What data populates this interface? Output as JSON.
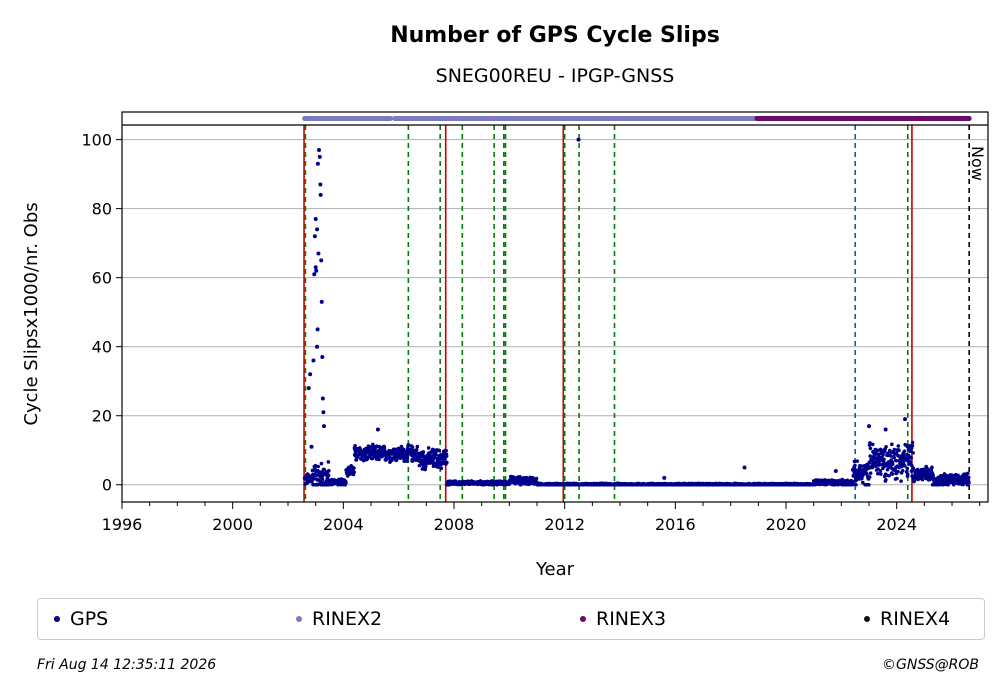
{
  "chart_data": {
    "type": "scatter",
    "title": "Number of GPS Cycle Slips",
    "subtitle": "SNEG00REU - IPGP-GNSS",
    "xlabel": "Year",
    "ylabel": "Cycle Slipsx1000/nr. Obs",
    "xlim": [
      1996,
      2027.3
    ],
    "ylim": [
      -5,
      108
    ],
    "xticks": [
      "1996",
      "2000",
      "2004",
      "2008",
      "2012",
      "2016",
      "2020",
      "2024"
    ],
    "yticks": [
      "0",
      "20",
      "40",
      "60",
      "80",
      "100"
    ],
    "grid": "horizontal",
    "now_label": "Now",
    "now_x": 2026.62,
    "series": [
      {
        "name": "GPS",
        "color": "#00008b",
        "segments": [
          {
            "from": 2002.6,
            "to": 2002.85,
            "base": 1.5,
            "spread": 3
          },
          {
            "from": 2002.85,
            "to": 2003.5,
            "base": 2,
            "spread": 8
          },
          {
            "from": 2003.5,
            "to": 2004.1,
            "base": 0.8,
            "spread": 1.5
          },
          {
            "from": 2004.1,
            "to": 2004.4,
            "base": 4,
            "spread": 3
          },
          {
            "from": 2004.4,
            "to": 2006.7,
            "base": 9,
            "spread": 4
          },
          {
            "from": 2006.7,
            "to": 2007.75,
            "base": 7.5,
            "spread": 5
          },
          {
            "from": 2007.75,
            "to": 2010.0,
            "base": 0.5,
            "spread": 1
          },
          {
            "from": 2010.0,
            "to": 2011.0,
            "base": 1.2,
            "spread": 2
          },
          {
            "from": 2011.0,
            "to": 2021.0,
            "base": 0.1,
            "spread": 0.5
          },
          {
            "from": 2021.0,
            "to": 2022.4,
            "base": 0.6,
            "spread": 1.5
          },
          {
            "from": 2022.4,
            "to": 2023.0,
            "base": 3,
            "spread": 6
          },
          {
            "from": 2023.0,
            "to": 2024.6,
            "base": 7,
            "spread": 9
          },
          {
            "from": 2024.6,
            "to": 2025.3,
            "base": 3,
            "spread": 4
          },
          {
            "from": 2025.3,
            "to": 2026.62,
            "base": 1.5,
            "spread": 3
          }
        ],
        "points": [
          {
            "x": 2002.75,
            "y": 28
          },
          {
            "x": 2002.8,
            "y": 32
          },
          {
            "x": 2002.85,
            "y": 11
          },
          {
            "x": 2002.92,
            "y": 36
          },
          {
            "x": 2002.95,
            "y": 61
          },
          {
            "x": 2002.97,
            "y": 72
          },
          {
            "x": 2003.0,
            "y": 77
          },
          {
            "x": 2003.02,
            "y": 62
          },
          {
            "x": 2003.05,
            "y": 74
          },
          {
            "x": 2003.07,
            "y": 45
          },
          {
            "x": 2003.08,
            "y": 93
          },
          {
            "x": 2003.1,
            "y": 67
          },
          {
            "x": 2003.12,
            "y": 97
          },
          {
            "x": 2003.15,
            "y": 95
          },
          {
            "x": 2003.17,
            "y": 87
          },
          {
            "x": 2003.18,
            "y": 84
          },
          {
            "x": 2003.2,
            "y": 65
          },
          {
            "x": 2003.22,
            "y": 53
          },
          {
            "x": 2003.24,
            "y": 37
          },
          {
            "x": 2003.26,
            "y": 25
          },
          {
            "x": 2003.28,
            "y": 21
          },
          {
            "x": 2003.3,
            "y": 17
          },
          {
            "x": 2003.05,
            "y": 40
          },
          {
            "x": 2003.0,
            "y": 63
          },
          {
            "x": 2005.25,
            "y": 16
          },
          {
            "x": 2012.5,
            "y": 100
          },
          {
            "x": 2018.5,
            "y": 5
          },
          {
            "x": 2021.8,
            "y": 4
          },
          {
            "x": 2015.6,
            "y": 2
          },
          {
            "x": 2024.3,
            "y": 19
          },
          {
            "x": 2023.0,
            "y": 17
          },
          {
            "x": 2023.6,
            "y": 16
          }
        ]
      },
      {
        "name": "RINEX2",
        "color": "#7b7bc0",
        "bar_from": 2002.6,
        "bar_to": 2018.95,
        "gap": [
          2005.7,
          2005.85
        ]
      },
      {
        "name": "RINEX3",
        "color": "#6a0a6a",
        "bar_from": 2018.95,
        "bar_to": 2026.62
      },
      {
        "name": "RINEX4",
        "color": "#1f0a1a"
      }
    ],
    "events": [
      {
        "x": 2002.58,
        "color": "#cc0000",
        "style": "solid"
      },
      {
        "x": 2002.63,
        "color": "#008000",
        "style": "dashed"
      },
      {
        "x": 2006.35,
        "color": "#008000",
        "style": "dashed"
      },
      {
        "x": 2007.5,
        "color": "#008000",
        "style": "dashed"
      },
      {
        "x": 2007.7,
        "color": "#cc0000",
        "style": "solid"
      },
      {
        "x": 2008.3,
        "color": "#008000",
        "style": "dashed"
      },
      {
        "x": 2009.45,
        "color": "#008000",
        "style": "dashed"
      },
      {
        "x": 2009.8,
        "color": "#008000",
        "style": "dashed"
      },
      {
        "x": 2009.86,
        "color": "#008000",
        "style": "dashed"
      },
      {
        "x": 2011.95,
        "color": "#cc0000",
        "style": "solid"
      },
      {
        "x": 2012.0,
        "color": "#008000",
        "style": "dashed"
      },
      {
        "x": 2012.52,
        "color": "#008000",
        "style": "dashed"
      },
      {
        "x": 2013.8,
        "color": "#008000",
        "style": "dashed"
      },
      {
        "x": 2022.5,
        "color": "#0066aa",
        "style": "dashed"
      },
      {
        "x": 2024.4,
        "color": "#008000",
        "style": "dashed"
      },
      {
        "x": 2024.55,
        "color": "#cc0000",
        "style": "solid"
      }
    ]
  },
  "legend": {
    "items": [
      {
        "label": "GPS",
        "color": "#00008b"
      },
      {
        "label": "RINEX2",
        "color": "#7b7bc0"
      },
      {
        "label": "RINEX3",
        "color": "#6a0a6a"
      },
      {
        "label": "RINEX4",
        "color": "#1f0a1a"
      }
    ]
  },
  "footer": {
    "timestamp": "Fri Aug 14 12:35:11 2026",
    "credit": "©GNSS@ROB"
  }
}
